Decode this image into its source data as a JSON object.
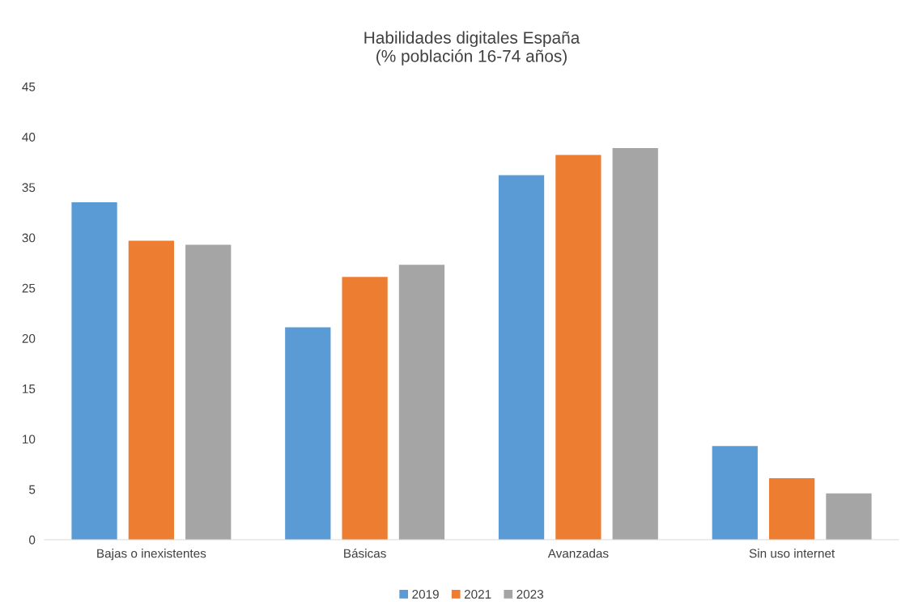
{
  "chart_data": {
    "type": "bar",
    "title": "Habilidades digitales España\n(% población 16-74 años)",
    "categories": [
      "Bajas o inexistentes",
      "Básicas",
      "Avanzadas",
      "Sin uso internet"
    ],
    "series": [
      {
        "name": "2019",
        "color": "#5b9bd5",
        "values": [
          33.5,
          21.1,
          36.2,
          9.3
        ]
      },
      {
        "name": "2021",
        "color": "#ed7d31",
        "values": [
          29.7,
          26.1,
          38.2,
          6.1
        ]
      },
      {
        "name": "2023",
        "color": "#a5a5a5",
        "values": [
          29.3,
          27.3,
          38.9,
          4.6
        ]
      }
    ],
    "ylim": [
      0,
      45
    ],
    "yticks": [
      0,
      5,
      10,
      15,
      20,
      25,
      30,
      35,
      40,
      45
    ],
    "grid": false,
    "legend": "bottom"
  }
}
